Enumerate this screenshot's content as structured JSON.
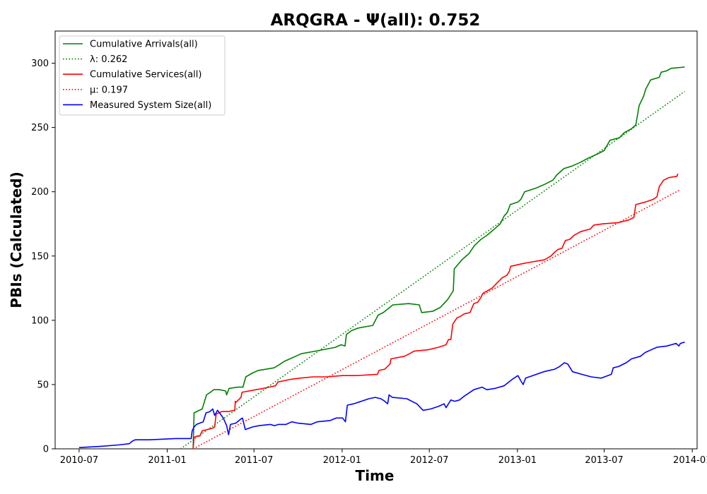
{
  "chart_data": {
    "type": "line",
    "title": "ARQGRA -  Ψ(all): 0.752",
    "xlabel": "Time",
    "ylabel": "PBIs (Calculated)",
    "x_axis_type": "date",
    "xlim": [
      "2010-05-12",
      "2014-01-11"
    ],
    "ylim": [
      0,
      325
    ],
    "x_ticks": [
      "2010-07",
      "2011-01",
      "2011-07",
      "2012-01",
      "2012-07",
      "2013-01",
      "2013-07",
      "2014-01"
    ],
    "x_tick_dates": [
      "2010-07-01",
      "2011-01-01",
      "2011-07-01",
      "2012-01-01",
      "2012-07-01",
      "2013-01-01",
      "2013-07-01",
      "2014-01-01"
    ],
    "y_ticks": [
      0,
      50,
      100,
      150,
      200,
      250,
      300
    ],
    "grid": false,
    "legend_position": "top-left",
    "series": [
      {
        "name": "Cumulative Arrivals(all)",
        "color": "#008000",
        "style": "solid",
        "points": [
          [
            "2011-02-24",
            1
          ],
          [
            "2011-02-26",
            28
          ],
          [
            "2011-03-15",
            31
          ],
          [
            "2011-03-24",
            42
          ],
          [
            "2011-04-01",
            44
          ],
          [
            "2011-04-08",
            46
          ],
          [
            "2011-04-20",
            46
          ],
          [
            "2011-05-03",
            45
          ],
          [
            "2011-05-05",
            42
          ],
          [
            "2011-05-10",
            47
          ],
          [
            "2011-05-28",
            48
          ],
          [
            "2011-06-08",
            48
          ],
          [
            "2011-06-14",
            56
          ],
          [
            "2011-06-28",
            59
          ],
          [
            "2011-07-10",
            61
          ],
          [
            "2011-08-12",
            63
          ],
          [
            "2011-08-25",
            66
          ],
          [
            "2011-09-02",
            68
          ],
          [
            "2011-09-14",
            70
          ],
          [
            "2011-09-26",
            72
          ],
          [
            "2011-10-08",
            74
          ],
          [
            "2011-11-06",
            76
          ],
          [
            "2011-12-05",
            78
          ],
          [
            "2011-12-18",
            79
          ],
          [
            "2011-12-30",
            81
          ],
          [
            "2012-01-07",
            80
          ],
          [
            "2012-01-10",
            89
          ],
          [
            "2012-01-21",
            92
          ],
          [
            "2012-02-04",
            94
          ],
          [
            "2012-03-05",
            96
          ],
          [
            "2012-03-16",
            104
          ],
          [
            "2012-03-27",
            106
          ],
          [
            "2012-04-06",
            109
          ],
          [
            "2012-04-16",
            112
          ],
          [
            "2012-05-19",
            113
          ],
          [
            "2012-06-10",
            112
          ],
          [
            "2012-06-15",
            106
          ],
          [
            "2012-07-08",
            107
          ],
          [
            "2012-07-24",
            110
          ],
          [
            "2012-08-08",
            116
          ],
          [
            "2012-08-15",
            120
          ],
          [
            "2012-08-20",
            123
          ],
          [
            "2012-08-22",
            140
          ],
          [
            "2012-09-07",
            147
          ],
          [
            "2012-09-22",
            152
          ],
          [
            "2012-10-03",
            158
          ],
          [
            "2012-10-17",
            163
          ],
          [
            "2012-10-29",
            166
          ],
          [
            "2012-11-11",
            170
          ],
          [
            "2012-11-26",
            175
          ],
          [
            "2012-12-04",
            181
          ],
          [
            "2012-12-11",
            184
          ],
          [
            "2012-12-17",
            190
          ],
          [
            "2013-01-02",
            192
          ],
          [
            "2013-01-08",
            194
          ],
          [
            "2013-01-16",
            200
          ],
          [
            "2013-02-10",
            203
          ],
          [
            "2013-02-28",
            206
          ],
          [
            "2013-03-16",
            209
          ],
          [
            "2013-03-24",
            213
          ],
          [
            "2013-04-08",
            218
          ],
          [
            "2013-04-25",
            220
          ],
          [
            "2013-05-13",
            223
          ],
          [
            "2013-05-28",
            226
          ],
          [
            "2013-06-15",
            229
          ],
          [
            "2013-07-01",
            232
          ],
          [
            "2013-07-07",
            236
          ],
          [
            "2013-07-13",
            240
          ],
          [
            "2013-08-02",
            242
          ],
          [
            "2013-08-12",
            246
          ],
          [
            "2013-08-27",
            249
          ],
          [
            "2013-09-05",
            252
          ],
          [
            "2013-09-12",
            267
          ],
          [
            "2013-09-21",
            274
          ],
          [
            "2013-09-26",
            280
          ],
          [
            "2013-10-06",
            287
          ],
          [
            "2013-10-24",
            289
          ],
          [
            "2013-10-28",
            293
          ],
          [
            "2013-11-08",
            294
          ],
          [
            "2013-11-18",
            296
          ],
          [
            "2013-12-16",
            297
          ]
        ]
      },
      {
        "name": "λ: 0.262",
        "color": "#008000",
        "style": "dotted",
        "points": [
          [
            "2011-01-29",
            0
          ],
          [
            "2013-12-16",
            278
          ]
        ]
      },
      {
        "name": "Cumulative Services(all)",
        "color": "#ff0000",
        "style": "solid",
        "points": [
          [
            "2011-02-24",
            0
          ],
          [
            "2011-02-26",
            9
          ],
          [
            "2011-03-05",
            10
          ],
          [
            "2011-03-10",
            10
          ],
          [
            "2011-03-15",
            14
          ],
          [
            "2011-04-05",
            16
          ],
          [
            "2011-04-10",
            17
          ],
          [
            "2011-04-13",
            27
          ],
          [
            "2011-04-25",
            29
          ],
          [
            "2011-05-08",
            29
          ],
          [
            "2011-05-22",
            30
          ],
          [
            "2011-05-23",
            37
          ],
          [
            "2011-05-24",
            36
          ],
          [
            "2011-06-04",
            40
          ],
          [
            "2011-06-06",
            44
          ],
          [
            "2011-07-05",
            46
          ],
          [
            "2011-07-20",
            47
          ],
          [
            "2011-08-15",
            49
          ],
          [
            "2011-08-20",
            52
          ],
          [
            "2011-09-15",
            54
          ],
          [
            "2011-10-05",
            55
          ],
          [
            "2011-11-01",
            56
          ],
          [
            "2011-12-01",
            56
          ],
          [
            "2012-01-01",
            57
          ],
          [
            "2012-02-01",
            57
          ],
          [
            "2012-03-15",
            58
          ],
          [
            "2012-03-18",
            61
          ],
          [
            "2012-03-30",
            62
          ],
          [
            "2012-04-10",
            66
          ],
          [
            "2012-04-12",
            70
          ],
          [
            "2012-05-10",
            72
          ],
          [
            "2012-05-21",
            74
          ],
          [
            "2012-05-30",
            76
          ],
          [
            "2012-06-28",
            77
          ],
          [
            "2012-07-20",
            79
          ],
          [
            "2012-08-05",
            81
          ],
          [
            "2012-08-10",
            85
          ],
          [
            "2012-08-15",
            85
          ],
          [
            "2012-08-19",
            97
          ],
          [
            "2012-08-28",
            102
          ],
          [
            "2012-09-04",
            103
          ],
          [
            "2012-09-12",
            105
          ],
          [
            "2012-09-24",
            106
          ],
          [
            "2012-10-02",
            113
          ],
          [
            "2012-10-10",
            114
          ],
          [
            "2012-10-17",
            118
          ],
          [
            "2012-10-21",
            121
          ],
          [
            "2012-11-09",
            125
          ],
          [
            "2012-11-22",
            130
          ],
          [
            "2012-11-30",
            133
          ],
          [
            "2012-12-10",
            135
          ],
          [
            "2012-12-15",
            138
          ],
          [
            "2012-12-18",
            142
          ],
          [
            "2013-01-11",
            144
          ],
          [
            "2013-01-25",
            145
          ],
          [
            "2013-02-26",
            147
          ],
          [
            "2013-03-12",
            150
          ],
          [
            "2013-03-17",
            152
          ],
          [
            "2013-03-26",
            155
          ],
          [
            "2013-04-04",
            156
          ],
          [
            "2013-04-11",
            162
          ],
          [
            "2013-04-20",
            163
          ],
          [
            "2013-04-29",
            166
          ],
          [
            "2013-05-13",
            169
          ],
          [
            "2013-06-02",
            171
          ],
          [
            "2013-06-09",
            174
          ],
          [
            "2013-06-28",
            175
          ],
          [
            "2013-07-31",
            176
          ],
          [
            "2013-08-21",
            178
          ],
          [
            "2013-09-01",
            180
          ],
          [
            "2013-09-05",
            190
          ],
          [
            "2013-09-25",
            192
          ],
          [
            "2013-10-11",
            194
          ],
          [
            "2013-10-19",
            196
          ],
          [
            "2013-10-24",
            204
          ],
          [
            "2013-11-02",
            209
          ],
          [
            "2013-11-13",
            211
          ],
          [
            "2013-11-30",
            212
          ],
          [
            "2013-12-02",
            214
          ]
        ]
      },
      {
        "name": "μ: 0.197",
        "color": "#ff0000",
        "style": "dotted",
        "points": [
          [
            "2011-02-24",
            0
          ],
          [
            "2013-12-04",
            201
          ]
        ]
      },
      {
        "name": "Measured System Size(all)",
        "color": "#0000ff",
        "style": "solid",
        "points": [
          [
            "2010-07-01",
            1
          ],
          [
            "2010-08-16",
            2
          ],
          [
            "2010-09-21",
            3
          ],
          [
            "2010-10-14",
            4
          ],
          [
            "2010-10-20",
            6
          ],
          [
            "2010-10-26",
            7
          ],
          [
            "2010-11-25",
            7
          ],
          [
            "2011-01-19",
            8
          ],
          [
            "2011-02-20",
            8
          ],
          [
            "2011-02-22",
            14
          ],
          [
            "2011-02-26",
            17
          ],
          [
            "2011-03-03",
            19
          ],
          [
            "2011-03-17",
            21
          ],
          [
            "2011-03-23",
            28
          ],
          [
            "2011-03-31",
            29
          ],
          [
            "2011-04-06",
            31
          ],
          [
            "2011-04-10",
            26
          ],
          [
            "2011-04-16",
            30
          ],
          [
            "2011-04-24",
            26
          ],
          [
            "2011-04-28",
            24
          ],
          [
            "2011-05-05",
            18
          ],
          [
            "2011-05-09",
            11
          ],
          [
            "2011-05-13",
            19
          ],
          [
            "2011-05-24",
            20
          ],
          [
            "2011-06-03",
            23
          ],
          [
            "2011-06-07",
            24
          ],
          [
            "2011-06-13",
            15
          ],
          [
            "2011-06-20",
            16
          ],
          [
            "2011-06-28",
            17
          ],
          [
            "2011-07-11",
            18
          ],
          [
            "2011-08-04",
            19
          ],
          [
            "2011-08-13",
            18
          ],
          [
            "2011-08-21",
            19
          ],
          [
            "2011-09-06",
            19
          ],
          [
            "2011-09-18",
            21
          ],
          [
            "2011-10-01",
            20
          ],
          [
            "2011-10-28",
            19
          ],
          [
            "2011-11-10",
            21
          ],
          [
            "2011-12-07",
            22
          ],
          [
            "2011-12-20",
            24
          ],
          [
            "2012-01-02",
            24
          ],
          [
            "2012-01-08",
            21
          ],
          [
            "2012-01-12",
            34
          ],
          [
            "2012-01-25",
            35
          ],
          [
            "2012-02-10",
            37
          ],
          [
            "2012-02-26",
            39
          ],
          [
            "2012-03-10",
            40
          ],
          [
            "2012-03-22",
            39
          ],
          [
            "2012-03-30",
            37
          ],
          [
            "2012-04-05",
            35
          ],
          [
            "2012-04-08",
            42
          ],
          [
            "2012-04-15",
            40
          ],
          [
            "2012-05-15",
            39
          ],
          [
            "2012-06-05",
            35
          ],
          [
            "2012-06-18",
            30
          ],
          [
            "2012-07-04",
            31
          ],
          [
            "2012-07-20",
            33
          ],
          [
            "2012-08-01",
            35
          ],
          [
            "2012-08-05",
            32
          ],
          [
            "2012-08-15",
            38
          ],
          [
            "2012-08-23",
            37
          ],
          [
            "2012-09-02",
            38
          ],
          [
            "2012-09-12",
            41
          ],
          [
            "2012-09-20",
            43
          ],
          [
            "2012-10-02",
            46
          ],
          [
            "2012-10-19",
            48
          ],
          [
            "2012-10-29",
            46
          ],
          [
            "2012-11-15",
            47
          ],
          [
            "2012-12-04",
            49
          ],
          [
            "2012-12-21",
            54
          ],
          [
            "2013-01-02",
            57
          ],
          [
            "2013-01-08",
            53
          ],
          [
            "2013-01-13",
            50
          ],
          [
            "2013-01-18",
            55
          ],
          [
            "2013-02-02",
            57
          ],
          [
            "2013-02-25",
            60
          ],
          [
            "2013-03-20",
            62
          ],
          [
            "2013-03-30",
            64
          ],
          [
            "2013-04-09",
            67
          ],
          [
            "2013-04-16",
            66
          ],
          [
            "2013-04-26",
            60
          ],
          [
            "2013-05-15",
            58
          ],
          [
            "2013-06-04",
            56
          ],
          [
            "2013-06-25",
            55
          ],
          [
            "2013-07-16",
            58
          ],
          [
            "2013-07-20",
            63
          ],
          [
            "2013-07-31",
            64
          ],
          [
            "2013-08-16",
            67
          ],
          [
            "2013-08-27",
            70
          ],
          [
            "2013-09-15",
            72
          ],
          [
            "2013-09-25",
            75
          ],
          [
            "2013-10-07",
            77
          ],
          [
            "2013-10-19",
            79
          ],
          [
            "2013-11-09",
            80
          ],
          [
            "2013-11-28",
            82
          ],
          [
            "2013-12-04",
            80
          ],
          [
            "2013-12-07",
            82
          ],
          [
            "2013-12-16",
            83
          ]
        ]
      }
    ]
  }
}
